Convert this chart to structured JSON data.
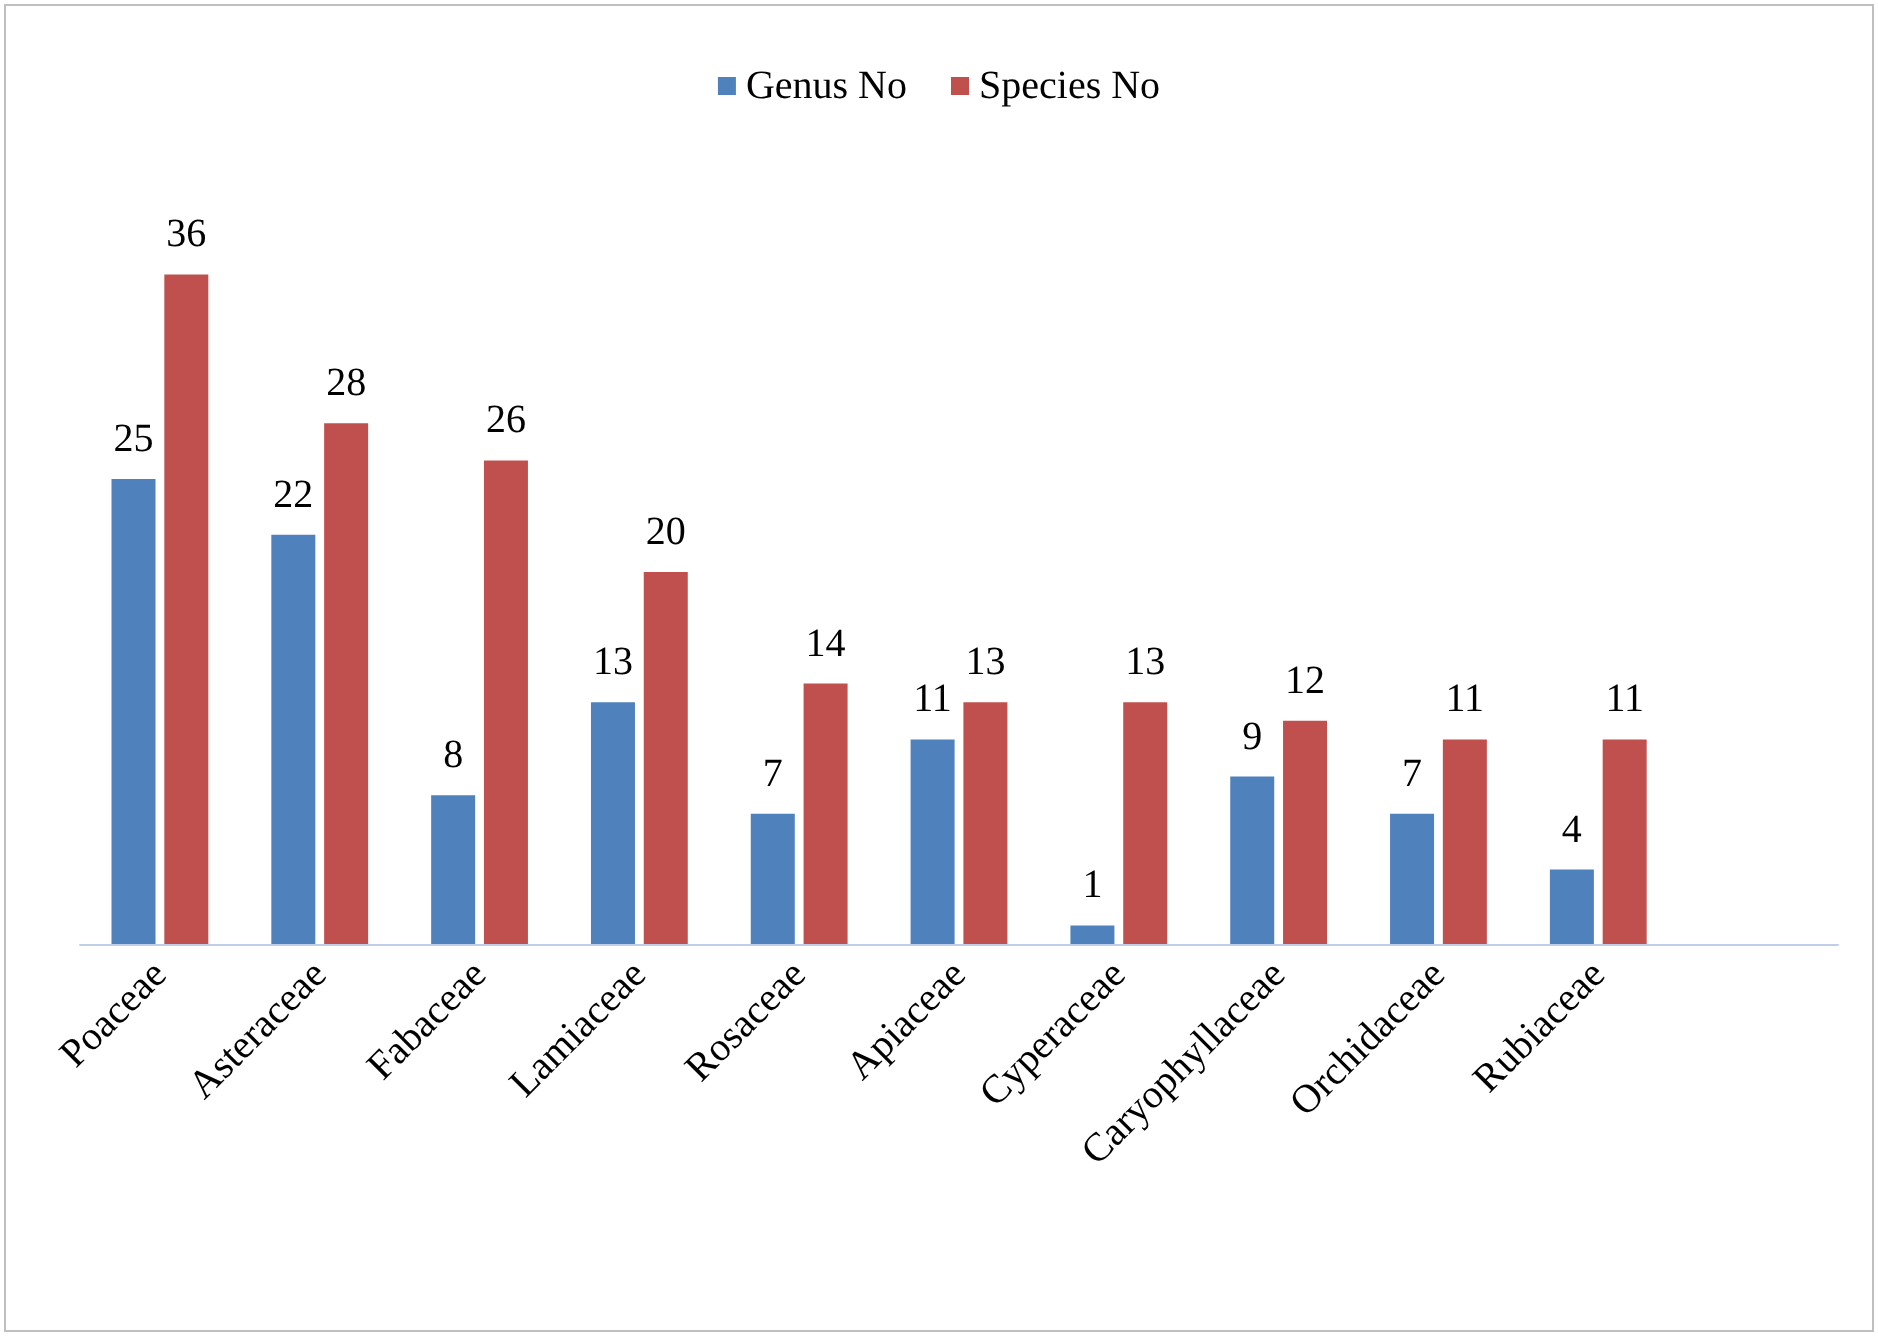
{
  "chart_data": {
    "type": "bar",
    "categories": [
      "Poaceae",
      "Asteraceae",
      "Fabaceae",
      "Lamiaceae",
      "Rosaceae",
      "Apiaceae",
      "Cyperaceae",
      "Caryophyllaceae",
      "Orchidaceae",
      "Rubiaceae",
      null
    ],
    "series": [
      {
        "name": "Genus No",
        "color": "#4f81bd",
        "values": [
          25,
          22,
          8,
          13,
          7,
          11,
          1,
          9,
          7,
          4,
          null
        ]
      },
      {
        "name": "Species No",
        "color": "#c0504d",
        "values": [
          36,
          28,
          26,
          20,
          14,
          13,
          13,
          12,
          11,
          11,
          null
        ]
      }
    ],
    "data_labels": true,
    "legend": "top"
  }
}
